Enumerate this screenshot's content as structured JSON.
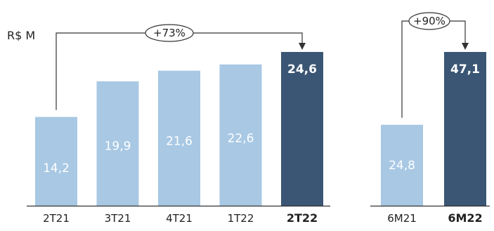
{
  "chart_data": [
    {
      "type": "bar",
      "ylabel": "R$ M",
      "categories": [
        "2T21",
        "3T21",
        "4T21",
        "1T22",
        "2T22"
      ],
      "values": [
        14.2,
        19.9,
        21.6,
        22.6,
        24.6
      ],
      "value_labels": [
        "14,2",
        "19,9",
        "21,6",
        "22,6",
        "24,6"
      ],
      "highlight_index": 4,
      "growth": {
        "label": "+73%",
        "from_index": 0,
        "to_index": 4
      }
    },
    {
      "type": "bar",
      "categories": [
        "6M21",
        "6M22"
      ],
      "values": [
        24.8,
        47.1
      ],
      "value_labels": [
        "24,8",
        "47,1"
      ],
      "highlight_index": 1,
      "growth": {
        "label": "+90%",
        "from_index": 0,
        "to_index": 1
      }
    }
  ],
  "colors": {
    "bar": "#a8c8e4",
    "bar_highlight": "#3a5674",
    "axis": "#333333",
    "text": "#222222"
  }
}
